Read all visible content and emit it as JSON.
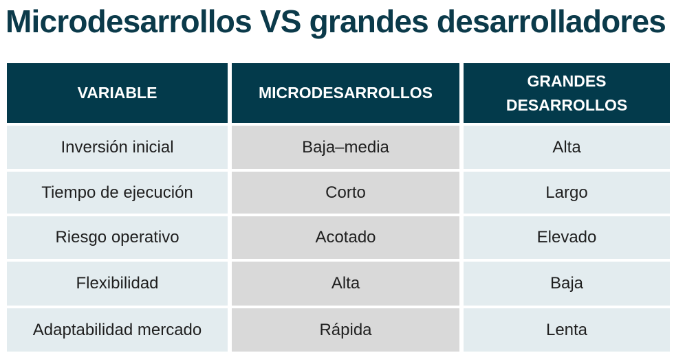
{
  "title": "Microdesarrollos VS grandes desarrolladores",
  "colors": {
    "title": "#0b3a4a",
    "header_bg": "#033a4b",
    "header_text": "#ffffff",
    "col_light_bg": "#e3ecef",
    "col_mid_bg": "#d9d9d9"
  },
  "table": {
    "headers": [
      "VARIABLE",
      "MICRODESARROLLOS",
      "GRANDES DESARROLLOS"
    ],
    "rows": [
      [
        "Inversión inicial",
        "Baja–media",
        "Alta"
      ],
      [
        "Tiempo de ejecución",
        "Corto",
        "Largo"
      ],
      [
        "Riesgo operativo",
        "Acotado",
        "Elevado"
      ],
      [
        "Flexibilidad",
        "Alta",
        "Baja"
      ],
      [
        "Adaptabilidad mercado",
        "Rápida",
        "Lenta"
      ]
    ]
  }
}
